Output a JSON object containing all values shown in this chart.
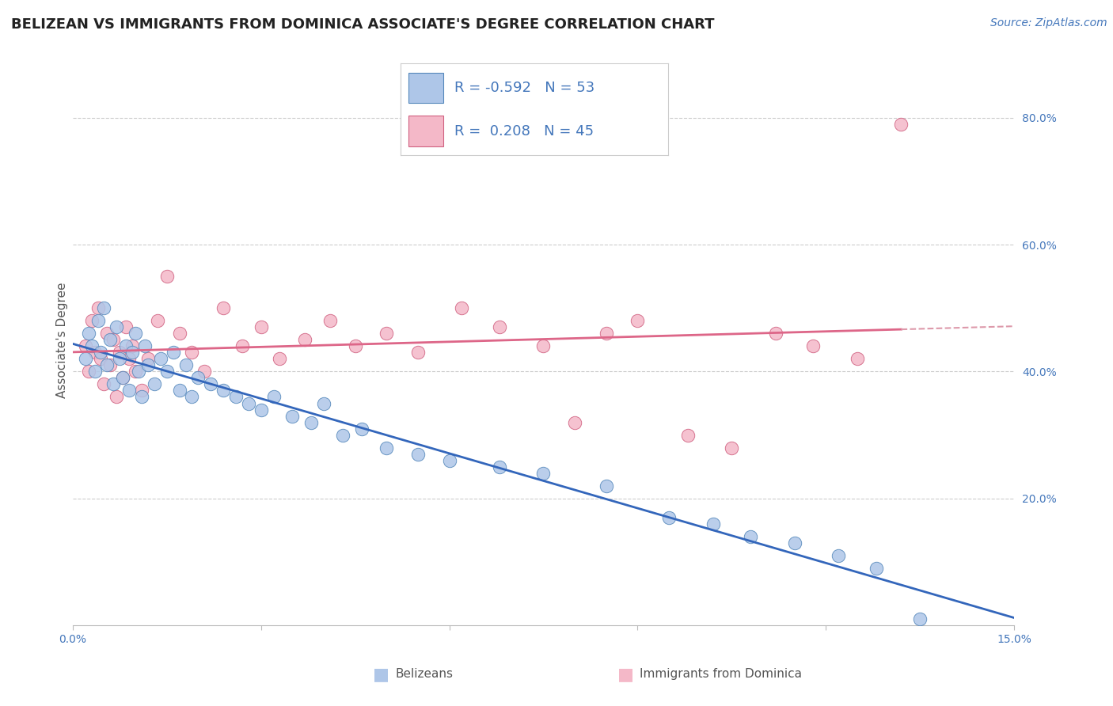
{
  "title": "BELIZEAN VS IMMIGRANTS FROM DOMINICA ASSOCIATE'S DEGREE CORRELATION CHART",
  "source_text": "Source: ZipAtlas.com",
  "xlabel_blue": "Belizeans",
  "xlabel_pink": "Immigrants from Dominica",
  "ylabel": "Associate's Degree",
  "xlim": [
    0.0,
    15.0
  ],
  "ylim": [
    0.0,
    90.0
  ],
  "y_ticks_right": [
    20.0,
    40.0,
    60.0,
    80.0
  ],
  "blue_scatter": {
    "x": [
      0.2,
      0.25,
      0.3,
      0.35,
      0.4,
      0.45,
      0.5,
      0.55,
      0.6,
      0.65,
      0.7,
      0.75,
      0.8,
      0.85,
      0.9,
      0.95,
      1.0,
      1.05,
      1.1,
      1.15,
      1.2,
      1.3,
      1.4,
      1.5,
      1.6,
      1.7,
      1.8,
      1.9,
      2.0,
      2.2,
      2.4,
      2.6,
      2.8,
      3.0,
      3.2,
      3.5,
      3.8,
      4.0,
      4.3,
      4.6,
      5.0,
      5.5,
      6.0,
      6.8,
      7.5,
      8.5,
      9.5,
      10.2,
      10.8,
      11.5,
      12.2,
      12.8,
      13.5
    ],
    "y": [
      42.0,
      46.0,
      44.0,
      40.0,
      48.0,
      43.0,
      50.0,
      41.0,
      45.0,
      38.0,
      47.0,
      42.0,
      39.0,
      44.0,
      37.0,
      43.0,
      46.0,
      40.0,
      36.0,
      44.0,
      41.0,
      38.0,
      42.0,
      40.0,
      43.0,
      37.0,
      41.0,
      36.0,
      39.0,
      38.0,
      37.0,
      36.0,
      35.0,
      34.0,
      36.0,
      33.0,
      32.0,
      35.0,
      30.0,
      31.0,
      28.0,
      27.0,
      26.0,
      25.0,
      24.0,
      22.0,
      17.0,
      16.0,
      14.0,
      13.0,
      11.0,
      9.0,
      1.0
    ],
    "color": "#aec6e8",
    "edge_color": "#5588bb",
    "R": -0.592,
    "N": 53
  },
  "pink_scatter": {
    "x": [
      0.2,
      0.25,
      0.3,
      0.35,
      0.4,
      0.45,
      0.5,
      0.55,
      0.6,
      0.65,
      0.7,
      0.75,
      0.8,
      0.85,
      0.9,
      0.95,
      1.0,
      1.1,
      1.2,
      1.35,
      1.5,
      1.7,
      1.9,
      2.1,
      2.4,
      2.7,
      3.0,
      3.3,
      3.7,
      4.1,
      4.5,
      5.0,
      5.5,
      6.2,
      6.8,
      7.5,
      8.0,
      8.5,
      9.0,
      9.8,
      10.5,
      11.2,
      11.8,
      12.5,
      13.2
    ],
    "y": [
      44.0,
      40.0,
      48.0,
      43.0,
      50.0,
      42.0,
      38.0,
      46.0,
      41.0,
      45.0,
      36.0,
      43.0,
      39.0,
      47.0,
      42.0,
      44.0,
      40.0,
      37.0,
      42.0,
      48.0,
      55.0,
      46.0,
      43.0,
      40.0,
      50.0,
      44.0,
      47.0,
      42.0,
      45.0,
      48.0,
      44.0,
      46.0,
      43.0,
      50.0,
      47.0,
      44.0,
      32.0,
      46.0,
      48.0,
      30.0,
      28.0,
      46.0,
      44.0,
      42.0,
      79.0
    ],
    "color": "#f4b8c8",
    "edge_color": "#d06080",
    "R": 0.208,
    "N": 45
  },
  "blue_line_color": "#3366bb",
  "pink_line_color": "#dd6688",
  "pink_dash_color": "#dd99aa",
  "grid_color": "#cccccc",
  "background_color": "#ffffff",
  "title_fontsize": 13,
  "source_fontsize": 10,
  "axis_label_fontsize": 11,
  "tick_fontsize": 10,
  "legend_fontsize": 13
}
